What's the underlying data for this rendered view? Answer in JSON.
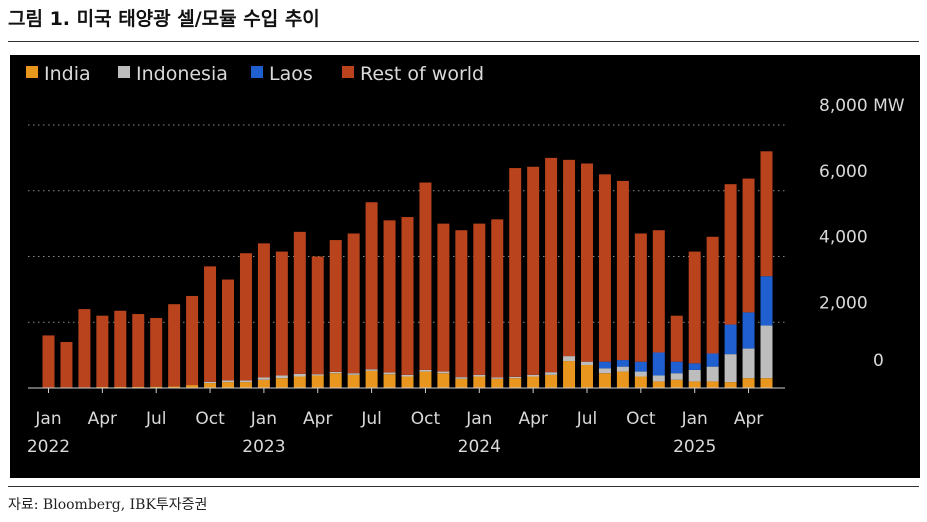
{
  "title": "그림 1. 미국 태양광 셀/모듈 수입 추이",
  "source": "자료: Bloomberg, IBK투자증권",
  "colors": {
    "India": "#e8961e",
    "Indonesia": "#bdbdbd",
    "Laos": "#1f5fd0",
    "Rest of world": "#b8431c",
    "background": "#000000",
    "grid": "#8a8a8a",
    "text": "#d9d9d9"
  },
  "chart_data": {
    "type": "bar",
    "stacked": true,
    "unit": "MW",
    "legend": [
      "India",
      "Indonesia",
      "Laos",
      "Rest of world"
    ],
    "legend_position": "top-left",
    "y_axis_position": "right",
    "ylim": [
      0,
      8000
    ],
    "yticks": [
      {
        "value": 0,
        "label": "0"
      },
      {
        "value": 2000,
        "label": "2,000"
      },
      {
        "value": 4000,
        "label": "4,000"
      },
      {
        "value": 6000,
        "label": "6,000"
      },
      {
        "value": 8000,
        "label": "8,000 MW"
      }
    ],
    "grid": "dotted horizontal",
    "x_tick_labels": [
      {
        "index": 0,
        "month": "Jan",
        "year": "2022"
      },
      {
        "index": 3,
        "month": "Apr"
      },
      {
        "index": 6,
        "month": "Jul"
      },
      {
        "index": 9,
        "month": "Oct"
      },
      {
        "index": 12,
        "month": "Jan",
        "year": "2023"
      },
      {
        "index": 15,
        "month": "Apr"
      },
      {
        "index": 18,
        "month": "Jul"
      },
      {
        "index": 21,
        "month": "Oct"
      },
      {
        "index": 24,
        "month": "Jan",
        "year": "2024"
      },
      {
        "index": 27,
        "month": "Apr"
      },
      {
        "index": 30,
        "month": "Jul"
      },
      {
        "index": 33,
        "month": "Oct"
      },
      {
        "index": 36,
        "month": "Jan",
        "year": "2025"
      },
      {
        "index": 39,
        "month": "Apr"
      }
    ],
    "categories": [
      "2022-01",
      "2022-02",
      "2022-03",
      "2022-04",
      "2022-05",
      "2022-06",
      "2022-07",
      "2022-08",
      "2022-09",
      "2022-10",
      "2022-11",
      "2022-12",
      "2023-01",
      "2023-02",
      "2023-03",
      "2023-04",
      "2023-05",
      "2023-06",
      "2023-07",
      "2023-08",
      "2023-09",
      "2023-10",
      "2023-11",
      "2023-12",
      "2024-01",
      "2024-02",
      "2024-03",
      "2024-04",
      "2024-05",
      "2024-06",
      "2024-07",
      "2024-08",
      "2024-09",
      "2024-10",
      "2024-11",
      "2024-12",
      "2025-01",
      "2025-02",
      "2025-03",
      "2025-04",
      "2025-05"
    ],
    "series": [
      {
        "name": "India",
        "values": [
          0,
          0,
          0,
          30,
          30,
          30,
          40,
          50,
          90,
          150,
          180,
          180,
          250,
          300,
          350,
          380,
          450,
          400,
          520,
          420,
          350,
          500,
          450,
          280,
          350,
          280,
          300,
          350,
          400,
          820,
          700,
          450,
          500,
          350,
          200,
          250,
          200,
          200,
          180,
          300,
          300
        ]
      },
      {
        "name": "Indonesia",
        "values": [
          0,
          0,
          0,
          0,
          0,
          0,
          0,
          0,
          0,
          40,
          50,
          50,
          70,
          80,
          80,
          40,
          40,
          50,
          50,
          50,
          50,
          50,
          50,
          50,
          50,
          40,
          40,
          50,
          80,
          150,
          100,
          150,
          150,
          150,
          180,
          200,
          350,
          450,
          850,
          900,
          1600
        ]
      },
      {
        "name": "Laos",
        "values": [
          0,
          0,
          0,
          0,
          0,
          0,
          0,
          0,
          0,
          0,
          0,
          0,
          0,
          0,
          0,
          0,
          0,
          0,
          0,
          0,
          0,
          0,
          0,
          0,
          0,
          0,
          0,
          0,
          0,
          0,
          0,
          200,
          200,
          300,
          700,
          350,
          200,
          400,
          900,
          1100,
          1500
        ]
      },
      {
        "name": "Rest of world",
        "values": [
          1600,
          1400,
          2400,
          2170,
          2320,
          2220,
          2090,
          2500,
          2710,
          3510,
          3070,
          3870,
          4080,
          3770,
          4320,
          3580,
          4010,
          4250,
          5080,
          4630,
          4800,
          5700,
          4500,
          4470,
          4600,
          4810,
          6350,
          6330,
          6520,
          5970,
          6030,
          5700,
          5450,
          3900,
          3720,
          1400,
          3400,
          3550,
          4270,
          4070,
          3800
        ]
      }
    ]
  }
}
